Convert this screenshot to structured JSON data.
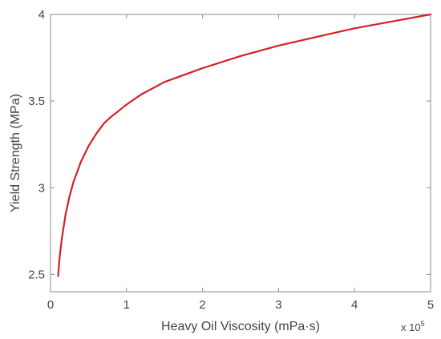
{
  "chart_data": {
    "type": "line",
    "title": "",
    "xlabel": "Heavy Oil Viscosity (mPa·s)",
    "ylabel": "Yield Strength (MPa)",
    "x_multiplier": {
      "base": "x 10",
      "exponent": "5"
    },
    "x_display_range": [
      0,
      5
    ],
    "xlim": [
      0,
      500000
    ],
    "ylim": [
      2.4,
      4.0
    ],
    "x_ticks": [
      "0",
      "1",
      "2",
      "3",
      "4",
      "5"
    ],
    "y_ticks": [
      "2.5",
      "3",
      "3.5",
      "4"
    ],
    "grid": false,
    "legend": "none",
    "series": [
      {
        "color": "#d42027",
        "x": [
          10000,
          12000,
          15000,
          20000,
          25000,
          30000,
          40000,
          50000,
          60000,
          70000,
          80000,
          100000,
          120000,
          150000,
          175000,
          200000,
          250000,
          300000,
          350000,
          400000,
          450000,
          500000
        ],
        "y": [
          2.49,
          2.6,
          2.71,
          2.85,
          2.95,
          3.03,
          3.15,
          3.24,
          3.31,
          3.37,
          3.41,
          3.48,
          3.54,
          3.61,
          3.65,
          3.69,
          3.76,
          3.82,
          3.87,
          3.92,
          3.96,
          4.0
        ]
      }
    ]
  }
}
